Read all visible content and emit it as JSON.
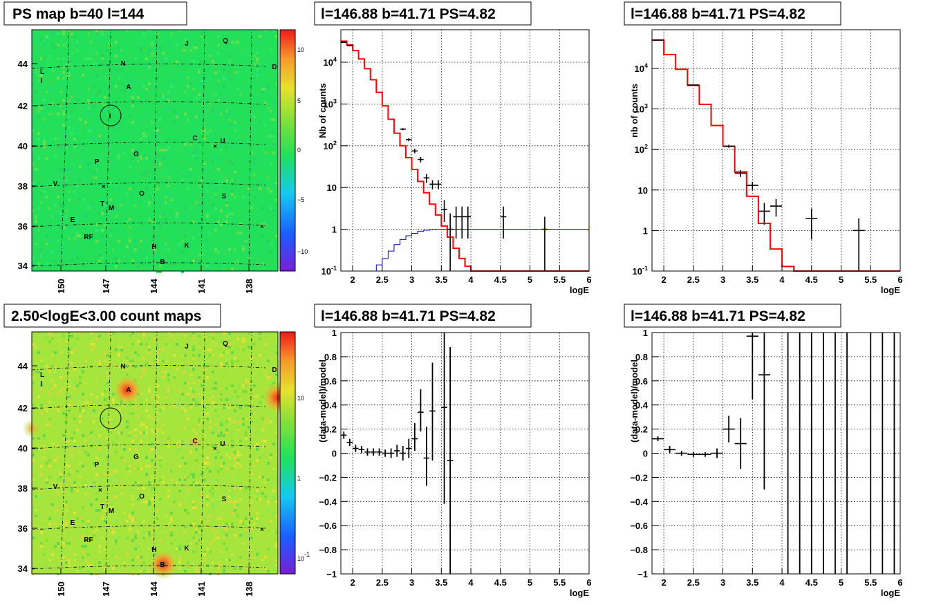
{
  "colors": {
    "model": "#ff0000",
    "blue_curve": "#0000cc",
    "data": "#000000",
    "map_bg": "#22e05a",
    "count_map_bg": "#a6e63c"
  },
  "chart_data": [
    {
      "id": "ps-map",
      "type": "heatmap",
      "title": "PS map b=40 l=144",
      "x_ticks": [
        "150",
        "147",
        "144",
        "141",
        "138"
      ],
      "y_ticks": [
        "44",
        "42",
        "40",
        "38",
        "36",
        "34"
      ],
      "colorbar_ticks": [
        "10",
        "5",
        "0",
        "−5",
        "−10"
      ],
      "sources": [
        "J",
        "Q",
        "N",
        "D",
        "L",
        "I",
        "A",
        "I",
        "C",
        "U",
        "G",
        "P",
        "V",
        "O",
        "S",
        "T",
        "M",
        "E",
        "RF",
        "H",
        "K",
        "B"
      ],
      "marker": "circle at l=146.88 b=41.71"
    },
    {
      "id": "spectrum-left",
      "type": "line",
      "title": "l=146.88 b=41.71 PS=4.82",
      "xlabel": "logE",
      "ylabel": "Nb of counts",
      "xlim": [
        1.8,
        6
      ],
      "ylim": [
        0.1,
        60000
      ],
      "yscale": "log",
      "x_ticks": [
        "2",
        "2.5",
        "3",
        "3.5",
        "4",
        "4.5",
        "5",
        "5.5",
        "6"
      ],
      "y_ticks": [
        "10^{4}",
        "10^{3}",
        "10^{2}",
        "10",
        "1",
        "10^{-1}"
      ],
      "grid": true,
      "model_edges": [
        1.8,
        1.9,
        2.0,
        2.1,
        2.2,
        2.3,
        2.4,
        2.5,
        2.6,
        2.7,
        2.8,
        2.9,
        3.0,
        3.1,
        3.2,
        3.3,
        3.4,
        3.5,
        3.6,
        3.7,
        3.8,
        3.9,
        4.0,
        4.1,
        4.2,
        6.0
      ],
      "model_values": [
        32000,
        26000,
        19000,
        12000,
        7000,
        3800,
        1900,
        900,
        430,
        200,
        100,
        52,
        27,
        14,
        7.5,
        4.0,
        2.2,
        1.2,
        0.65,
        0.35,
        0.2,
        0.13,
        0.1,
        0.1,
        0.1
      ],
      "blue_edges": [
        1.8,
        2.3,
        2.4,
        2.5,
        2.6,
        2.7,
        2.8,
        2.9,
        3.0,
        3.1,
        3.2,
        3.3,
        3.4,
        3.5,
        3.6,
        6.0
      ],
      "blue_values": [
        0.1,
        0.1,
        0.14,
        0.2,
        0.3,
        0.43,
        0.57,
        0.7,
        0.8,
        0.9,
        0.95,
        0.98,
        1.0,
        1.0,
        1.0,
        1.0
      ],
      "points": [
        {
          "x": 1.85,
          "y": 30000,
          "xerr": 0.05,
          "ylo": 29000,
          "yhi": 31000
        },
        {
          "x": 1.95,
          "y": 25000,
          "xerr": 0.05,
          "ylo": 24000,
          "yhi": 26000
        },
        {
          "x": 2.85,
          "y": 250,
          "xerr": 0.05,
          "ylo": 235,
          "yhi": 265
        },
        {
          "x": 2.95,
          "y": 140,
          "xerr": 0.05,
          "ylo": 128,
          "yhi": 152
        },
        {
          "x": 3.05,
          "y": 75,
          "xerr": 0.05,
          "ylo": 66,
          "yhi": 84
        },
        {
          "x": 3.15,
          "y": 47,
          "xerr": 0.05,
          "ylo": 40,
          "yhi": 54
        },
        {
          "x": 3.25,
          "y": 17,
          "xerr": 0.05,
          "ylo": 13,
          "yhi": 21
        },
        {
          "x": 3.35,
          "y": 12,
          "xerr": 0.05,
          "ylo": 9,
          "yhi": 15
        },
        {
          "x": 3.45,
          "y": 12,
          "xerr": 0.05,
          "ylo": 9,
          "yhi": 15
        },
        {
          "x": 3.55,
          "y": 3,
          "xerr": 0.05,
          "ylo": 1.5,
          "yhi": 5
        },
        {
          "x": 3.65,
          "y": 1,
          "xerr": 0.05,
          "ylo": 0.1,
          "yhi": 2.4
        },
        {
          "x": 3.75,
          "y": 2,
          "xerr": 0.05,
          "ylo": 0.6,
          "yhi": 3.5
        },
        {
          "x": 3.85,
          "y": 2,
          "xerr": 0.05,
          "ylo": 0.6,
          "yhi": 3.5
        },
        {
          "x": 3.95,
          "y": 2,
          "xerr": 0.05,
          "ylo": 0.6,
          "yhi": 3.5
        },
        {
          "x": 4.55,
          "y": 2,
          "xerr": 0.05,
          "ylo": 0.6,
          "yhi": 3.5
        },
        {
          "x": 5.25,
          "y": 1,
          "xerr": 0.05,
          "ylo": 0.1,
          "yhi": 2.0
        }
      ]
    },
    {
      "id": "spectrum-right",
      "type": "line",
      "title": "l=146.88 b=41.71 PS=4.82",
      "xlabel": "logE",
      "ylabel": "nb of counts",
      "xlim": [
        1.8,
        6
      ],
      "ylim": [
        0.1,
        90000
      ],
      "yscale": "log",
      "x_ticks": [
        "2",
        "2.5",
        "3",
        "3.5",
        "4",
        "4.5",
        "5",
        "5.5",
        "6"
      ],
      "y_ticks": [
        "10^{4}",
        "10^{3}",
        "10^{2}",
        "10",
        "1",
        "10^{-1}"
      ],
      "grid": true,
      "model_edges": [
        1.8,
        2.0,
        2.2,
        2.4,
        2.6,
        2.8,
        3.0,
        3.2,
        3.4,
        3.6,
        3.8,
        4.0,
        4.2,
        6.0
      ],
      "model_values": [
        50000,
        22000,
        9500,
        3800,
        1300,
        390,
        120,
        28,
        7,
        1.5,
        0.35,
        0.13,
        0.1
      ],
      "points": [
        {
          "x": 1.9,
          "y": 50000,
          "xerr": 0.1,
          "ylo": 49000,
          "yhi": 51000
        },
        {
          "x": 2.5,
          "y": 3900,
          "xerr": 0.1,
          "ylo": 3800,
          "yhi": 4000
        },
        {
          "x": 3.1,
          "y": 120,
          "xerr": 0.1,
          "ylo": 110,
          "yhi": 130
        },
        {
          "x": 3.3,
          "y": 26,
          "xerr": 0.1,
          "ylo": 21,
          "yhi": 31
        },
        {
          "x": 3.5,
          "y": 13,
          "xerr": 0.1,
          "ylo": 10,
          "yhi": 16
        },
        {
          "x": 3.7,
          "y": 3,
          "xerr": 0.1,
          "ylo": 1.4,
          "yhi": 4.8
        },
        {
          "x": 3.9,
          "y": 4,
          "xerr": 0.1,
          "ylo": 2.2,
          "yhi": 6
        },
        {
          "x": 4.5,
          "y": 2,
          "xerr": 0.1,
          "ylo": 0.6,
          "yhi": 3.5
        },
        {
          "x": 5.3,
          "y": 1,
          "xerr": 0.1,
          "ylo": 0.1,
          "yhi": 2.0
        }
      ]
    },
    {
      "id": "count-map",
      "type": "heatmap",
      "title": "2.50<logE<3.00 count maps",
      "x_ticks": [
        "150",
        "147",
        "144",
        "141",
        "138"
      ],
      "y_ticks": [
        "44",
        "42",
        "40",
        "38",
        "36",
        "34"
      ],
      "colorbar_ticks": [
        "10",
        "1",
        "10^{-1}"
      ],
      "sources": [
        "J",
        "Q",
        "N",
        "D",
        "L",
        "I",
        "A",
        "C",
        "U",
        "G",
        "P",
        "V",
        "O",
        "S",
        "T",
        "M",
        "E",
        "RF",
        "H",
        "K",
        "B"
      ],
      "hotspots": [
        "A",
        "D",
        "B",
        "C"
      ]
    },
    {
      "id": "residual-left",
      "type": "scatter",
      "title": "l=146.88 b=41.71 PS=4.82",
      "xlabel": "logE",
      "ylabel": "(data-model)/model",
      "xlim": [
        1.8,
        6
      ],
      "ylim": [
        -1,
        1
      ],
      "x_ticks": [
        "2",
        "2.5",
        "3",
        "3.5",
        "4",
        "4.5",
        "5",
        "5.5",
        "6"
      ],
      "y_ticks": [
        "1",
        "0.8",
        "0.6",
        "0.4",
        "0.2",
        "0",
        "−0.2",
        "−0.4",
        "−0.6",
        "−0.8",
        "−1"
      ],
      "grid": true,
      "points": [
        {
          "x": 1.85,
          "y": 0.15,
          "xerr": 0.05,
          "ylo": 0.12,
          "yhi": 0.18
        },
        {
          "x": 1.95,
          "y": 0.09,
          "xerr": 0.05,
          "ylo": 0.06,
          "yhi": 0.12
        },
        {
          "x": 2.05,
          "y": 0.04,
          "xerr": 0.05,
          "ylo": 0.01,
          "yhi": 0.07
        },
        {
          "x": 2.15,
          "y": 0.03,
          "xerr": 0.05,
          "ylo": 0.0,
          "yhi": 0.06
        },
        {
          "x": 2.25,
          "y": 0.01,
          "xerr": 0.05,
          "ylo": -0.02,
          "yhi": 0.04
        },
        {
          "x": 2.35,
          "y": 0.01,
          "xerr": 0.05,
          "ylo": -0.02,
          "yhi": 0.04
        },
        {
          "x": 2.45,
          "y": 0.01,
          "xerr": 0.05,
          "ylo": -0.02,
          "yhi": 0.04
        },
        {
          "x": 2.55,
          "y": 0.0,
          "xerr": 0.05,
          "ylo": -0.03,
          "yhi": 0.03
        },
        {
          "x": 2.65,
          "y": 0.0,
          "xerr": 0.05,
          "ylo": -0.04,
          "yhi": 0.04
        },
        {
          "x": 2.75,
          "y": 0.02,
          "xerr": 0.05,
          "ylo": -0.03,
          "yhi": 0.07
        },
        {
          "x": 2.85,
          "y": 0.0,
          "xerr": 0.05,
          "ylo": -0.06,
          "yhi": 0.06
        },
        {
          "x": 2.95,
          "y": 0.04,
          "xerr": 0.05,
          "ylo": -0.04,
          "yhi": 0.12
        },
        {
          "x": 3.05,
          "y": 0.12,
          "xerr": 0.05,
          "ylo": 0.02,
          "yhi": 0.25
        },
        {
          "x": 3.15,
          "y": 0.34,
          "xerr": 0.05,
          "ylo": 0.18,
          "yhi": 0.53
        },
        {
          "x": 3.25,
          "y": -0.04,
          "xerr": 0.05,
          "ylo": -0.27,
          "yhi": 0.22
        },
        {
          "x": 3.35,
          "y": 0.35,
          "xerr": 0.05,
          "ylo": -0.06,
          "yhi": 0.75
        },
        {
          "x": 3.55,
          "y": 0.38,
          "xerr": 0.05,
          "ylo": -0.42,
          "yhi": 1.0
        },
        {
          "x": 3.65,
          "y": -0.06,
          "xerr": 0.05,
          "ylo": -1.0,
          "yhi": 0.88
        }
      ]
    },
    {
      "id": "residual-right",
      "type": "scatter",
      "title": "l=146.88 b=41.71 PS=4.82",
      "xlabel": "logE",
      "ylabel": "(data-model)/model",
      "xlim": [
        1.8,
        6
      ],
      "ylim": [
        -1,
        1
      ],
      "x_ticks": [
        "2",
        "2.5",
        "3",
        "3.5",
        "4",
        "4.5",
        "5",
        "5.5",
        "6"
      ],
      "y_ticks": [
        "1",
        "0.8",
        "0.6",
        "0.4",
        "0.2",
        "0",
        "−0.2",
        "−0.4",
        "−0.6",
        "−0.8",
        "−1"
      ],
      "grid": true,
      "points": [
        {
          "x": 1.9,
          "y": 0.12,
          "xerr": 0.1,
          "ylo": 0.1,
          "yhi": 0.14
        },
        {
          "x": 2.1,
          "y": 0.03,
          "xerr": 0.1,
          "ylo": 0.0,
          "yhi": 0.06
        },
        {
          "x": 2.3,
          "y": 0.0,
          "xerr": 0.1,
          "ylo": -0.02,
          "yhi": 0.02
        },
        {
          "x": 2.5,
          "y": -0.01,
          "xerr": 0.1,
          "ylo": -0.03,
          "yhi": 0.01
        },
        {
          "x": 2.7,
          "y": -0.01,
          "xerr": 0.1,
          "ylo": -0.03,
          "yhi": 0.01
        },
        {
          "x": 2.9,
          "y": 0.0,
          "xerr": 0.1,
          "ylo": -0.04,
          "yhi": 0.04
        },
        {
          "x": 3.1,
          "y": 0.2,
          "xerr": 0.1,
          "ylo": 0.09,
          "yhi": 0.31
        },
        {
          "x": 3.3,
          "y": 0.08,
          "xerr": 0.1,
          "ylo": -0.13,
          "yhi": 0.29
        },
        {
          "x": 3.5,
          "y": 0.97,
          "xerr": 0.1,
          "ylo": 0.45,
          "yhi": 1.0
        },
        {
          "x": 3.7,
          "y": 0.65,
          "xerr": 0.1,
          "ylo": -0.3,
          "yhi": 1.0
        },
        {
          "x": 4.1,
          "y": 1.0,
          "xerr": 0.0,
          "ylo": -1.0,
          "yhi": 1.0
        },
        {
          "x": 4.3,
          "y": 1.0,
          "xerr": 0.0,
          "ylo": -1.0,
          "yhi": 1.0
        },
        {
          "x": 4.5,
          "y": 1.0,
          "xerr": 0.0,
          "ylo": -1.0,
          "yhi": 1.0
        },
        {
          "x": 4.7,
          "y": 1.0,
          "xerr": 0.0,
          "ylo": -1.0,
          "yhi": 1.0
        },
        {
          "x": 4.9,
          "y": 1.0,
          "xerr": 0.0,
          "ylo": -1.0,
          "yhi": 1.0
        },
        {
          "x": 5.1,
          "y": 1.0,
          "xerr": 0.0,
          "ylo": -1.0,
          "yhi": 1.0
        },
        {
          "x": 5.5,
          "y": 1.0,
          "xerr": 0.0,
          "ylo": -1.0,
          "yhi": 1.0
        },
        {
          "x": 5.7,
          "y": 1.0,
          "xerr": 0.0,
          "ylo": -1.0,
          "yhi": 1.0
        },
        {
          "x": 5.9,
          "y": 1.0,
          "xerr": 0.0,
          "ylo": -1.0,
          "yhi": 1.0
        }
      ]
    }
  ]
}
